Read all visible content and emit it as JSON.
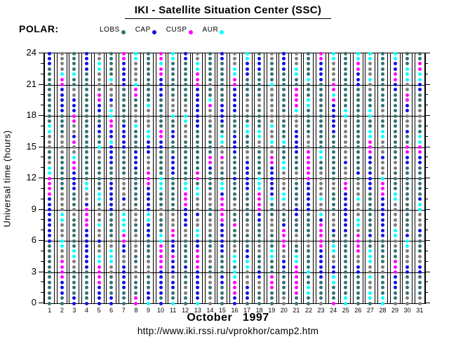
{
  "title": "IKI - Satellite Situation Center (SSC)",
  "satellite_label": "POLAR:",
  "legend": [
    {
      "label": "LOBS",
      "code": "L",
      "color": "#337373"
    },
    {
      "label": "CAP",
      "code": "C",
      "color": "#1010E0"
    },
    {
      "label": "CUSP",
      "code": "U",
      "color": "#FF00FF"
    },
    {
      "label": "AUR",
      "code": "A",
      "color": "#00FFFF"
    }
  ],
  "footer": {
    "month_year": "October   1997",
    "url": "http://www.iki.rssi.ru/vprokhor/camp2.htm"
  },
  "chart_data": {
    "type": "scatter",
    "title": "IKI - Satellite Situation Center (SSC)",
    "ylabel": "Universal time (hours)",
    "ylim": [
      0,
      24
    ],
    "ytick_major": [
      0,
      3,
      6,
      9,
      12,
      15,
      18,
      21,
      24
    ],
    "ytick_minor_step": 1,
    "grid": "horizontal major lines, one bordered column per day",
    "legend_position": "top",
    "resolution_hours": 0.5,
    "pattern_direction": "first char = 24h (top), last char = 0h (bottom), one char per 0.5h",
    "color_codes": {
      "L": "lobes (LOBS)",
      "C": "polar cap (CAP)",
      "U": "cusp (CUSP)",
      "A": "auroral zone (AUR)",
      "G": "other region (gray, unlabeled)"
    },
    "code_colors": {
      "L": "#337373",
      "C": "#1010E0",
      "U": "#FF00FF",
      "A": "#00FFFF",
      "G": "#7F7F7F"
    },
    "days": [
      {
        "day": 1,
        "pattern": "CCCLLLLLLLLLLLAAGGGLLGAAUUUUCCCCCCCCCLLLLLLLLLLLL"
      },
      {
        "day": 2,
        "pattern": "GGGGAUUCCCCCLLLLGGGGLLLLLLLGGGGAAGGGAAGGUUUUCCCLL"
      },
      {
        "day": 3,
        "pattern": "LLLLALLGGCCCUUGGCUGGAUUCCCCLLLGGLLLLLLAAGGLLLLLCC"
      },
      {
        "day": 4,
        "pattern": "CCCCLLLLLLLLLLLLLLLLLLLLLAAGGCUUUUCCCCCCCCLLLLLLC"
      },
      {
        "day": 5,
        "pattern": "GGAAGGGGUUCCLLCCLLAGGLLLLLLAALGGGAGGCGGAAUUUUCCCC"
      },
      {
        "day": 6,
        "pattern": "LLLLLAGGGCGAAUUCCACCCCLLLCCCCCCLLLLLGGAAAGGLLLLCC"
      },
      {
        "day": 7,
        "pattern": "UUCCCCCLLLLLLLCCCCCLLLLLGGGGCGGAAAAUUCCGGCCCCCLLL"
      },
      {
        "day": 8,
        "pattern": "AAGGGGAUULLGGGALLLLCCCCLLLLLLLGGGLLGGGGLLGGGLLLUU"
      },
      {
        "day": 9,
        "pattern": "LLLLLLLLLLAGGGGAACCCGGGUUUCCCCCAACCCLLLLGGGLLLCCA"
      },
      {
        "day": 10,
        "pattern": "UUAUUCCCCLLLLLLUUCCLLLLLAAALLLGGLLLAAUUUUUCCCCCLC"
      },
      {
        "day": 11,
        "pattern": "AALLLLLLLGGGALLCCLLLCCCCLLLLLLLGGGUUCCCUCCCGCCLLA"
      },
      {
        "day": 12,
        "pattern": "CCLLLLLLLLGGAAGGGLLLLLLLLAAUUUCCCCGGLLLLLCLLLGGLL"
      },
      {
        "day": 13,
        "pattern": "GGAAUUUCCCCCCCCLLLLLLLLUULAAGGGCGGAACCUUUUCCCCCCA"
      },
      {
        "day": 14,
        "pattern": "LLLLLLGLLAUGGGLGGLLLUUCLLLLGGGLLGGGLLLGGGLLGGLLGG"
      },
      {
        "day": 15,
        "pattern": "CCLLLLLLLLCCCCLLAAGGUGGLLAACUUUUUCCCCCCLLLLCCLLLL"
      },
      {
        "day": 16,
        "pattern": "GGGAAUUCCCCCLLLLCCCCLLLLCLLLLGGLLULLLGGAALAAUUUCC"
      },
      {
        "day": 17,
        "pattern": "AACCCLLLLGGGLLAALLLGGCCCCCCLLLLLLGGLLLCCAAGGGCCCL"
      },
      {
        "day": 18,
        "pattern": "LCCCLLLLLGGLLLLAAGGLLLLLAAAUUUUCCLLLLGGLLLCCGGLLL"
      },
      {
        "day": 19,
        "pattern": "GGLLLLAGGGGGGGAGGAGGUUCCCCCCALLLGGGLLLAALLLUUULLL"
      },
      {
        "day": 20,
        "pattern": "CCCCLLLLLLLLGLLLLALLLAAGGGGAAGGLLCUUUUGGCCLLLLLGG"
      },
      {
        "day": 21,
        "pattern": "GGGAALLUUUUAGGGCCCCCLLLGGLLLLLCCLLLGGLLAAUUUUUULL"
      },
      {
        "day": 22,
        "pattern": "LLLLLALLLAALLLLLGGGUUUUUUCCCCCCLLLLLGGLLLLALLAALL"
      },
      {
        "day": 23,
        "pattern": "UUCCCCLLLLLLLLLLLLLAALLGGGGGAGGACUUUUUCCCCCCLLLLG"
      },
      {
        "day": 24,
        "pattern": "AAGGGGUUAUCCCCCCLLLLLLLLLGGLLLLGGGCLLAAGGCCAALLLU"
      },
      {
        "day": 25,
        "pattern": "LLLLLLLLLLLAAGGGGGGGGCGGGUUCCCCCCCCLLLLLLLLLLLLAA"
      },
      {
        "day": 26,
        "pattern": "AAUUCCCLLLLLLLLLLLLLLLLCLGGGAGGGAAGUUUUGGCCLLLLLL"
      },
      {
        "day": 27,
        "pattern": "AAGGGAGGLLLAALLAAUUUCCLCCCCLLLLLLLLCLLAAAGGAGGAAL"
      },
      {
        "day": 28,
        "pattern": "LLLLLLLLLLLGGLLAAGGGCGGGAUUUCCCCCCCCLLLLLGGLLLLAA"
      },
      {
        "day": 29,
        "pattern": "AACCUUCCLLLLLLLLLLLLLGGLLLLAAGGGGGAAGGLLUUUCCCLLG"
      },
      {
        "day": 30,
        "pattern": "LLLAAAGGUUCCGGGCLLUUCCLLLLLLLLLLLLLCAAGGGCCLLLLGG"
      },
      {
        "day": 31,
        "pattern": "LLUUAACCLLLGGGLLAAUUCCLLLLLLCAAGGGCLLLLGGCCLLLLGG"
      }
    ]
  }
}
